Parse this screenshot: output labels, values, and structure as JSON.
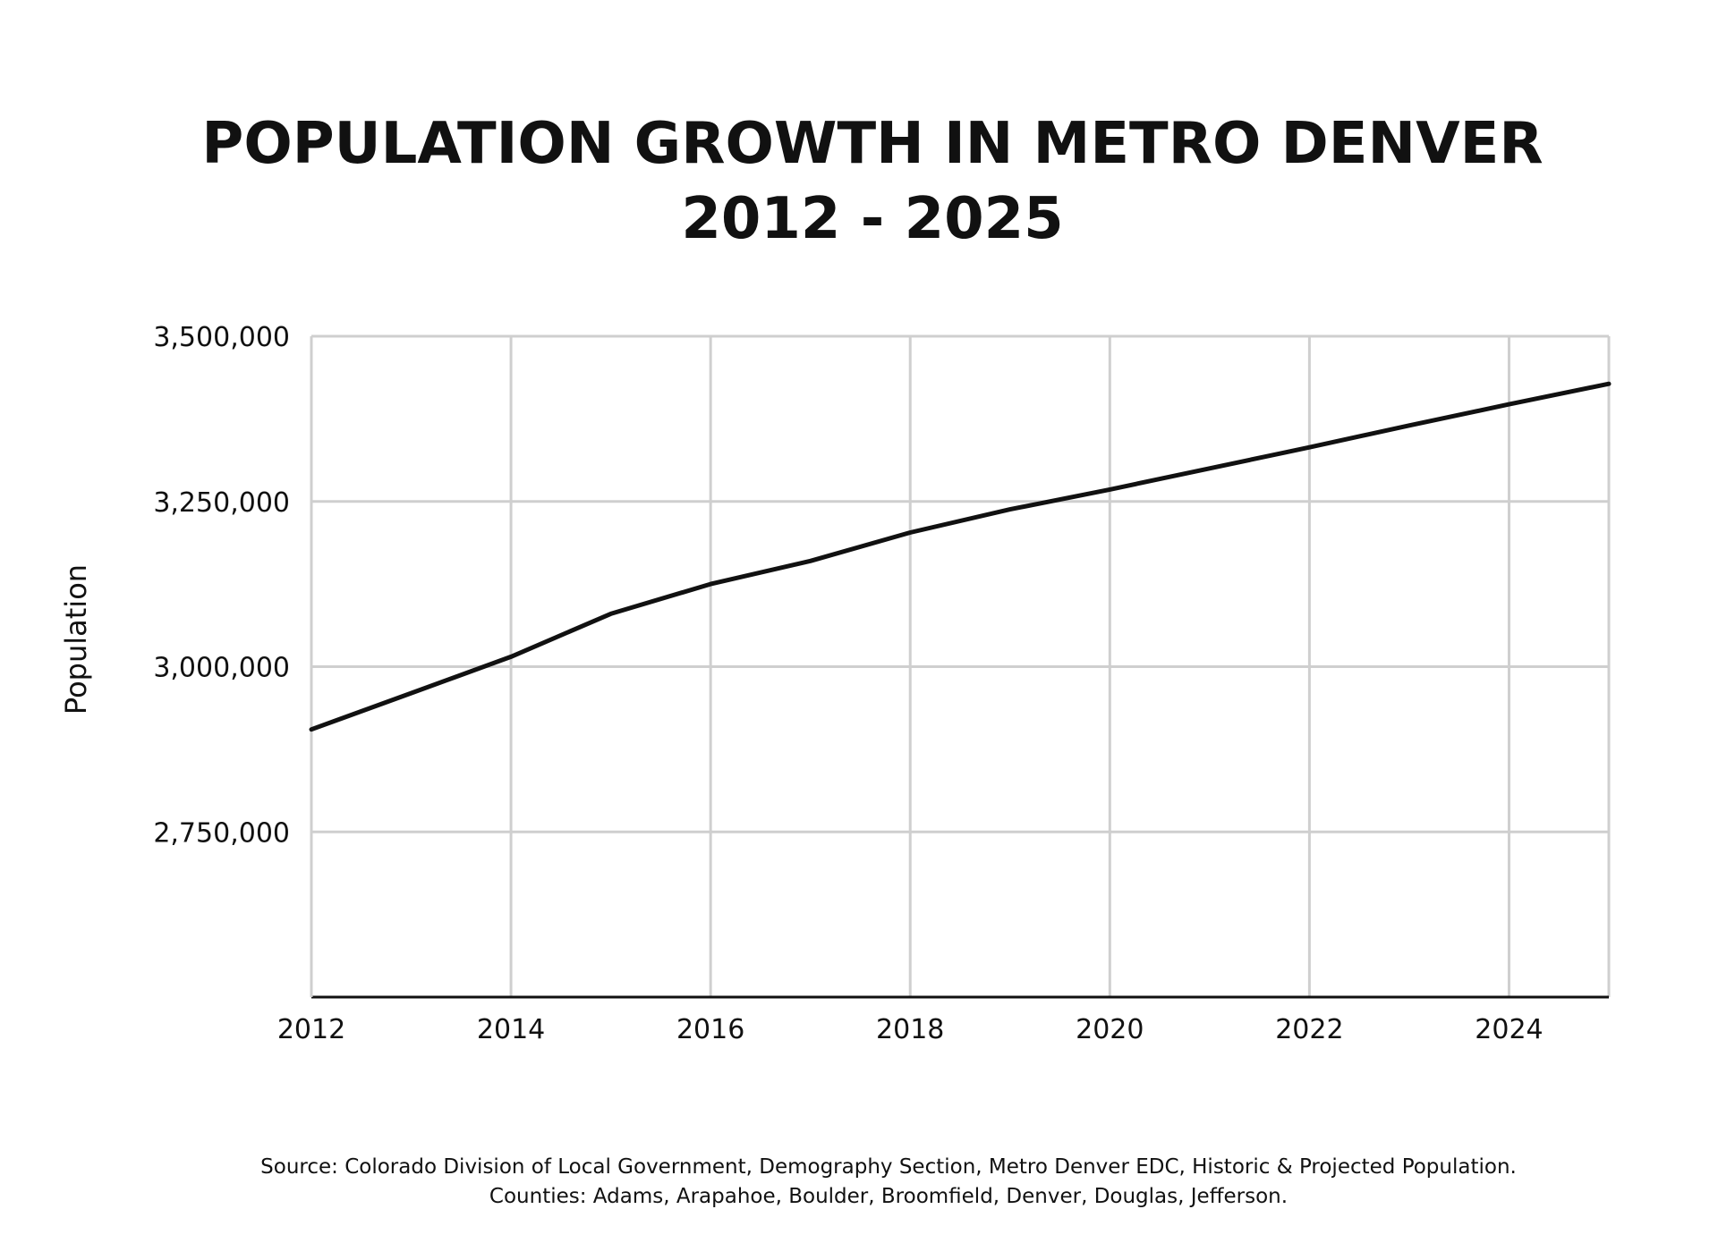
{
  "chart_data": {
    "type": "line",
    "title": "POPULATION GROWTH IN METRO DENVER",
    "subtitle": "2012 - 2025",
    "xlabel": "",
    "ylabel": "Population",
    "xlim": [
      2012,
      2025
    ],
    "ylim": [
      2500000,
      3500000
    ],
    "x_ticks": [
      2012,
      2014,
      2016,
      2018,
      2020,
      2022,
      2024
    ],
    "x_tick_labels": [
      "2012",
      "2014",
      "2016",
      "2018",
      "2020",
      "2022",
      "2024"
    ],
    "y_ticks": [
      2750000,
      3000000,
      3250000,
      3500000
    ],
    "y_tick_labels": [
      "2,750,000",
      "3,000,000",
      "3,250,000",
      "3,500,000"
    ],
    "grid": true,
    "series": [
      {
        "name": "Population",
        "color": "#111111",
        "x": [
          2012,
          2013,
          2014,
          2015,
          2016,
          2017,
          2018,
          2019,
          2020,
          2021,
          2022,
          2023,
          2024,
          2025
        ],
        "values": [
          2905000,
          2960000,
          3015000,
          3080000,
          3125000,
          3160000,
          3203000,
          3238000,
          3268000,
          3300000,
          3332000,
          3365000,
          3397000,
          3428000
        ]
      }
    ],
    "footnote_lines": [
      "Source: Colorado Division of Local Government, Demography Section, Metro Denver EDC, Historic & Projected Population.",
      "Counties: Adams, Arapahoe, Boulder, Broomfield, Denver, Douglas, Jefferson."
    ]
  },
  "colors": {
    "grid": "#cfcfcf",
    "axis": "#111111",
    "line": "#111111",
    "background": "#ffffff"
  }
}
